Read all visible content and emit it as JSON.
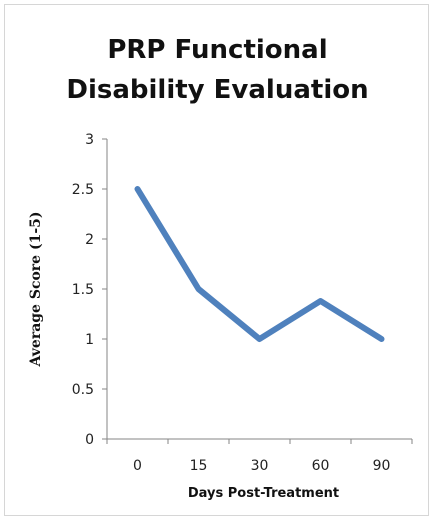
{
  "chart_data": {
    "type": "line",
    "title_lines": [
      "PRP Functional",
      "Disability Evaluation"
    ],
    "xlabel": "Days Post-Treatment",
    "ylabel": "Average Score (1-5)",
    "categories": [
      "0",
      "15",
      "30",
      "60",
      "90"
    ],
    "series": [
      {
        "values": [
          2.5,
          1.5,
          1.0,
          1.38,
          1.0
        ]
      }
    ],
    "ylim": [
      0,
      3
    ],
    "yticks": [
      "0",
      "0.5",
      "1",
      "1.5",
      "2",
      "2.5",
      "3"
    ],
    "grid": false,
    "legend": "none",
    "line_color": "#4F81BD",
    "axis_color": "#868686"
  }
}
